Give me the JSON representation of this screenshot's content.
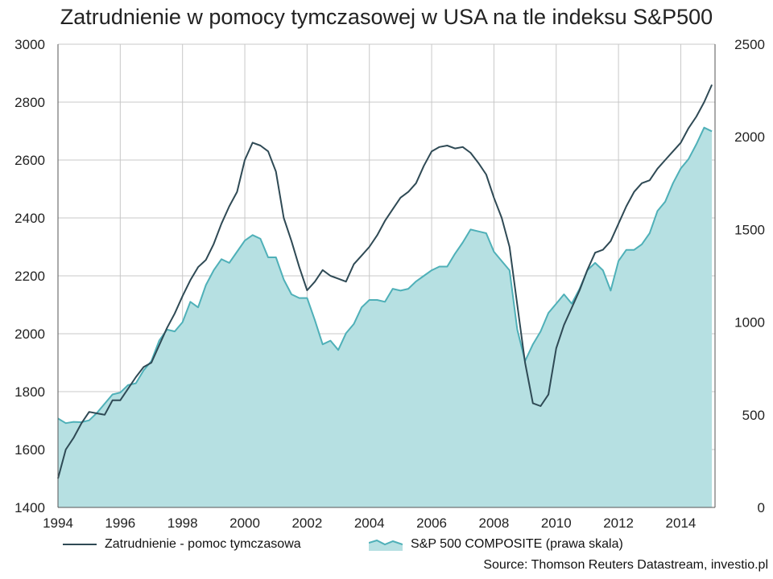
{
  "chart_data": {
    "type": "line",
    "title": "Zatrudnienie w pomocy tymczasowej w USA na tle indeksu S&P500",
    "source": "Source: Thomson Reuters Datastream, investio.pl",
    "x_ticks": [
      "1994",
      "1996",
      "1998",
      "2000",
      "2002",
      "2004",
      "2006",
      "2008",
      "2010",
      "2012",
      "2014"
    ],
    "xlim": [
      1994,
      2015.1
    ],
    "y_left": {
      "ticks": [
        "1400",
        "1600",
        "1800",
        "2000",
        "2200",
        "2400",
        "2600",
        "2800",
        "3000"
      ],
      "ylim": [
        1400,
        3000
      ]
    },
    "y_right": {
      "ticks": [
        "0",
        "500",
        "1000",
        "1500",
        "2000",
        "2500"
      ],
      "ylim": [
        0,
        2500
      ]
    },
    "grid": true,
    "legend_position": "bottom",
    "series": [
      {
        "name": "Zatrudnienie - pomoc tymczasowa",
        "type": "line",
        "axis": "left",
        "color": "#2f4a55",
        "x": [
          1994.0,
          1994.25,
          1994.5,
          1994.75,
          1995.0,
          1995.25,
          1995.5,
          1995.75,
          1996.0,
          1996.25,
          1996.5,
          1996.75,
          1997.0,
          1997.25,
          1997.5,
          1997.75,
          1998.0,
          1998.25,
          1998.5,
          1998.75,
          1999.0,
          1999.25,
          1999.5,
          1999.75,
          2000.0,
          2000.25,
          2000.5,
          2000.75,
          2001.0,
          2001.25,
          2001.5,
          2001.75,
          2002.0,
          2002.25,
          2002.5,
          2002.75,
          2003.0,
          2003.25,
          2003.5,
          2003.75,
          2004.0,
          2004.25,
          2004.5,
          2004.75,
          2005.0,
          2005.25,
          2005.5,
          2005.75,
          2006.0,
          2006.25,
          2006.5,
          2006.75,
          2007.0,
          2007.25,
          2007.5,
          2007.75,
          2008.0,
          2008.25,
          2008.5,
          2008.75,
          2009.0,
          2009.25,
          2009.5,
          2009.75,
          2010.0,
          2010.25,
          2010.5,
          2010.75,
          2011.0,
          2011.25,
          2011.5,
          2011.75,
          2012.0,
          2012.25,
          2012.5,
          2012.75,
          2013.0,
          2013.25,
          2013.5,
          2013.75,
          2014.0,
          2014.25,
          2014.5,
          2014.75,
          2015.0
        ],
        "values": [
          1500,
          1600,
          1640,
          1690,
          1730,
          1725,
          1720,
          1770,
          1770,
          1810,
          1850,
          1885,
          1900,
          1960,
          2020,
          2070,
          2130,
          2185,
          2230,
          2255,
          2310,
          2380,
          2440,
          2490,
          2600,
          2660,
          2650,
          2630,
          2560,
          2400,
          2320,
          2230,
          2150,
          2180,
          2220,
          2200,
          2190,
          2180,
          2240,
          2270,
          2300,
          2340,
          2390,
          2430,
          2470,
          2490,
          2520,
          2580,
          2630,
          2645,
          2650,
          2640,
          2645,
          2625,
          2590,
          2550,
          2470,
          2400,
          2300,
          2100,
          1900,
          1760,
          1750,
          1790,
          1950,
          2030,
          2090,
          2150,
          2220,
          2280,
          2290,
          2320,
          2380,
          2440,
          2490,
          2520,
          2530,
          2570,
          2600,
          2630,
          2660,
          2710,
          2750,
          2800,
          2860
        ]
      },
      {
        "name": "S&P 500 COMPOSITE (prawa skala)",
        "type": "area",
        "axis": "right",
        "color": "#4fb0b8",
        "fill": "#b6e0e2",
        "x": [
          1994.0,
          1994.25,
          1994.5,
          1994.75,
          1995.0,
          1995.25,
          1995.5,
          1995.75,
          1996.0,
          1996.25,
          1996.5,
          1996.75,
          1997.0,
          1997.25,
          1997.5,
          1997.75,
          1998.0,
          1998.25,
          1998.5,
          1998.75,
          1999.0,
          1999.25,
          1999.5,
          1999.75,
          2000.0,
          2000.25,
          2000.5,
          2000.75,
          2001.0,
          2001.25,
          2001.5,
          2001.75,
          2002.0,
          2002.25,
          2002.5,
          2002.75,
          2003.0,
          2003.25,
          2003.5,
          2003.75,
          2004.0,
          2004.25,
          2004.5,
          2004.75,
          2005.0,
          2005.25,
          2005.5,
          2005.75,
          2006.0,
          2006.25,
          2006.5,
          2006.75,
          2007.0,
          2007.25,
          2007.5,
          2007.75,
          2008.0,
          2008.25,
          2008.5,
          2008.75,
          2009.0,
          2009.25,
          2009.5,
          2009.75,
          2010.0,
          2010.25,
          2010.5,
          2010.75,
          2011.0,
          2011.25,
          2011.5,
          2011.75,
          2012.0,
          2012.25,
          2012.5,
          2012.75,
          2013.0,
          2013.25,
          2013.5,
          2013.75,
          2014.0,
          2014.25,
          2014.5,
          2014.75,
          2015.0
        ],
        "values": [
          480,
          455,
          462,
          460,
          470,
          510,
          560,
          610,
          620,
          660,
          670,
          740,
          790,
          900,
          960,
          950,
          1000,
          1110,
          1080,
          1200,
          1280,
          1340,
          1320,
          1380,
          1440,
          1470,
          1450,
          1350,
          1350,
          1230,
          1150,
          1130,
          1130,
          1010,
          880,
          900,
          850,
          940,
          990,
          1080,
          1120,
          1120,
          1110,
          1180,
          1170,
          1180,
          1220,
          1250,
          1280,
          1300,
          1300,
          1370,
          1430,
          1500,
          1490,
          1480,
          1380,
          1330,
          1280,
          960,
          790,
          880,
          950,
          1050,
          1100,
          1150,
          1100,
          1180,
          1280,
          1320,
          1280,
          1170,
          1330,
          1390,
          1390,
          1420,
          1480,
          1600,
          1650,
          1750,
          1830,
          1880,
          1960,
          2050,
          2030
        ]
      }
    ]
  }
}
